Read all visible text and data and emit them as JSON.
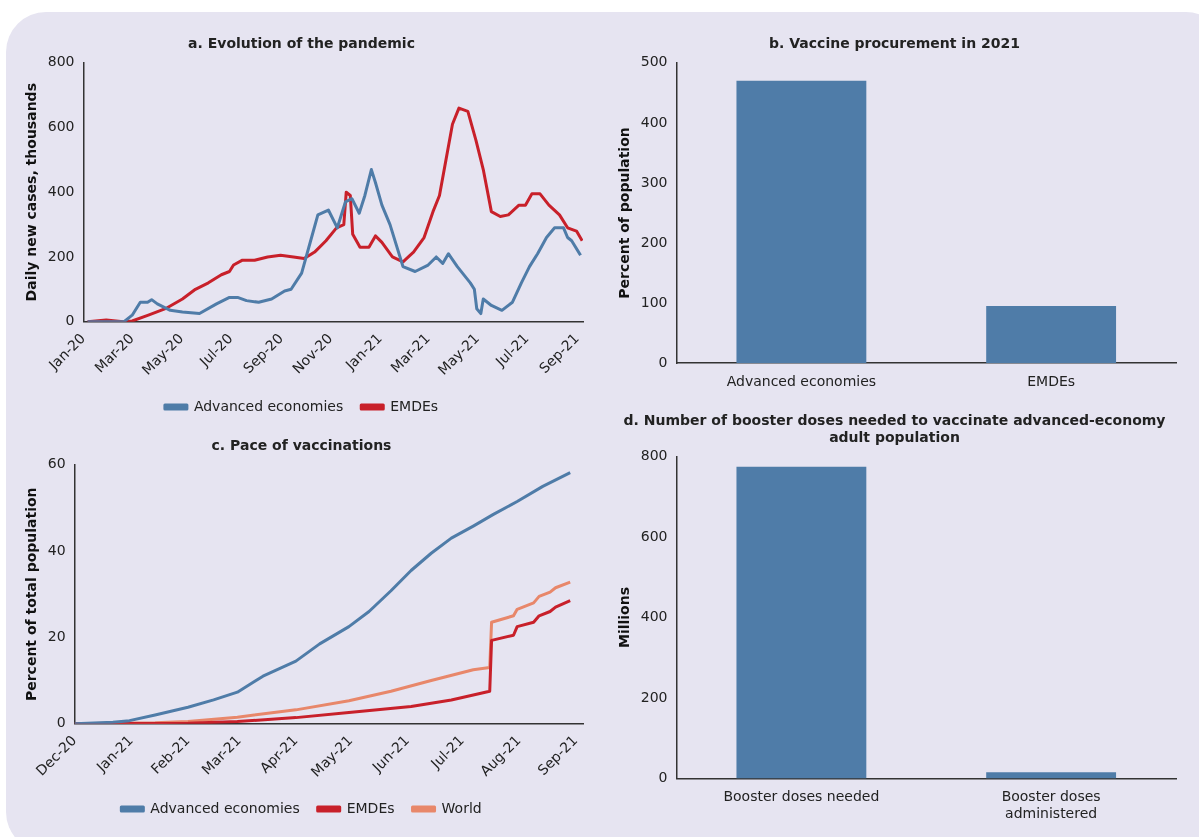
{
  "chart_data": [
    {
      "type": "line",
      "title": "a. Evolution of the pandemic",
      "ylabel": "Daily new cases, thousands",
      "legend": "bottom",
      "xlim": [
        "2020-01-01",
        "2021-09-08"
      ],
      "xticks": [
        {
          "value": "2020-01-01",
          "label": "Jan-20"
        },
        {
          "value": "2020-03-01",
          "label": "Mar-20"
        },
        {
          "value": "2020-05-01",
          "label": "May-20"
        },
        {
          "value": "2020-07-01",
          "label": "Jul-20"
        },
        {
          "value": "2020-09-01",
          "label": "Sep-20"
        },
        {
          "value": "2020-11-01",
          "label": "Nov-20"
        },
        {
          "value": "2021-01-01",
          "label": "Jan-21"
        },
        {
          "value": "2021-03-01",
          "label": "Mar-21"
        },
        {
          "value": "2021-05-01",
          "label": "May-21"
        },
        {
          "value": "2021-07-01",
          "label": "Jul-21"
        },
        {
          "value": "2021-09-01",
          "label": "Sep-21"
        }
      ],
      "ylim": [
        0,
        800
      ],
      "yticks": [
        0,
        200,
        400,
        600,
        800
      ],
      "series": [
        {
          "name": "Advanced economies",
          "color": "#4f7ca8",
          "x": [
            "2020-01-06",
            "2020-02-20",
            "2020-03-01",
            "2020-03-11",
            "2020-03-20",
            "2020-03-25",
            "2020-04-01",
            "2020-04-17",
            "2020-05-02",
            "2020-05-23",
            "2020-06-13",
            "2020-06-29",
            "2020-07-09",
            "2020-07-20",
            "2020-08-04",
            "2020-08-20",
            "2020-09-05",
            "2020-09-13",
            "2020-09-26",
            "2020-10-06",
            "2020-10-16",
            "2020-10-29",
            "2020-11-09",
            "2020-11-19",
            "2020-11-27",
            "2020-12-06",
            "2020-12-13",
            "2020-12-21",
            "2020-12-26",
            "2021-01-03",
            "2021-01-13",
            "2021-01-29",
            "2021-02-13",
            "2021-03-01",
            "2021-03-11",
            "2021-03-19",
            "2021-03-26",
            "2021-04-06",
            "2021-04-22",
            "2021-04-27",
            "2021-04-30",
            "2021-05-05",
            "2021-05-08",
            "2021-05-18",
            "2021-05-31",
            "2021-06-13",
            "2021-06-24",
            "2021-07-04",
            "2021-07-14",
            "2021-07-25",
            "2021-08-04",
            "2021-08-15",
            "2021-08-20",
            "2021-08-25",
            "2021-09-05"
          ],
          "values": [
            0,
            0,
            20,
            60,
            60,
            68,
            55,
            35,
            30,
            25,
            55,
            75,
            75,
            65,
            60,
            70,
            95,
            100,
            150,
            240,
            330,
            345,
            290,
            370,
            380,
            335,
            390,
            470,
            430,
            360,
            300,
            170,
            155,
            175,
            200,
            180,
            210,
            170,
            120,
            100,
            40,
            25,
            70,
            50,
            35,
            60,
            120,
            170,
            210,
            260,
            290,
            290,
            260,
            250,
            205
          ]
        },
        {
          "name": "EMDEs",
          "color": "#c8202a",
          "x": [
            "2020-01-06",
            "2020-01-29",
            "2020-02-19",
            "2020-03-01",
            "2020-03-21",
            "2020-04-11",
            "2020-05-02",
            "2020-05-18",
            "2020-06-03",
            "2020-06-19",
            "2020-06-29",
            "2020-07-04",
            "2020-07-15",
            "2020-07-30",
            "2020-08-15",
            "2020-08-31",
            "2020-09-16",
            "2020-09-29",
            "2020-10-12",
            "2020-10-26",
            "2020-11-08",
            "2020-11-17",
            "2020-11-20",
            "2020-11-25",
            "2020-11-28",
            "2020-12-07",
            "2020-12-18",
            "2020-12-26",
            "2021-01-03",
            "2021-01-16",
            "2021-01-29",
            "2021-02-11",
            "2021-02-24",
            "2021-03-07",
            "2021-03-15",
            "2021-03-23",
            "2021-03-31",
            "2021-04-08",
            "2021-04-19",
            "2021-04-29",
            "2021-05-08",
            "2021-05-18",
            "2021-05-29",
            "2021-06-08",
            "2021-06-21",
            "2021-06-29",
            "2021-07-07",
            "2021-07-17",
            "2021-07-28",
            "2021-08-10",
            "2021-08-20",
            "2021-08-31",
            "2021-09-07"
          ],
          "values": [
            0,
            5,
            0,
            2,
            20,
            40,
            70,
            100,
            120,
            145,
            155,
            175,
            190,
            190,
            200,
            205,
            200,
            195,
            215,
            250,
            290,
            300,
            400,
            390,
            270,
            230,
            230,
            265,
            245,
            200,
            185,
            215,
            260,
            340,
            390,
            500,
            610,
            660,
            650,
            560,
            470,
            340,
            325,
            330,
            360,
            360,
            395,
            395,
            360,
            330,
            290,
            280,
            250
          ]
        }
      ]
    },
    {
      "type": "bar",
      "title": "b. Vaccine procurement in 2021",
      "ylabel": "Percent of population",
      "categories": [
        "Advanced economies",
        "EMDEs"
      ],
      "values": [
        470,
        95
      ],
      "color": "#4f7ca8",
      "ylim": [
        0,
        500
      ],
      "yticks": [
        0,
        100,
        200,
        300,
        400,
        500
      ]
    },
    {
      "type": "line",
      "title": "c. Pace of vaccinations",
      "ylabel": "Percent of total population",
      "legend": "bottom",
      "xlim": [
        "2020-12-01",
        "2021-09-05"
      ],
      "xticks": [
        {
          "value": "2020-12-01",
          "label": "Dec-20"
        },
        {
          "value": "2021-01-01",
          "label": "Jan-21"
        },
        {
          "value": "2021-02-01",
          "label": "Feb-21"
        },
        {
          "value": "2021-03-01",
          "label": "Mar-21"
        },
        {
          "value": "2021-04-01",
          "label": "Apr-21"
        },
        {
          "value": "2021-05-01",
          "label": "May-21"
        },
        {
          "value": "2021-06-01",
          "label": "Jun-21"
        },
        {
          "value": "2021-07-01",
          "label": "Jul-21"
        },
        {
          "value": "2021-08-01",
          "label": "Aug-21"
        },
        {
          "value": "2021-09-01",
          "label": "Sep-21"
        }
      ],
      "ylim": [
        0,
        60
      ],
      "yticks": [
        0,
        20,
        40,
        60
      ],
      "series": [
        {
          "name": "Advanced economies",
          "color": "#4f7ca8",
          "x": [
            "2020-12-01",
            "2020-12-22",
            "2020-12-31",
            "2021-01-14",
            "2021-02-01",
            "2021-02-15",
            "2021-02-28",
            "2021-03-14",
            "2021-04-01",
            "2021-04-14",
            "2021-04-30",
            "2021-05-11",
            "2021-05-23",
            "2021-06-03",
            "2021-06-14",
            "2021-06-25",
            "2021-07-07",
            "2021-07-18",
            "2021-07-31",
            "2021-08-14",
            "2021-08-29"
          ],
          "values": [
            0,
            0.3,
            0.7,
            2,
            3.8,
            5.5,
            7.3,
            11,
            14.5,
            18.5,
            22.5,
            26,
            30.8,
            35.5,
            39.5,
            43,
            45.8,
            48.5,
            51.5,
            55,
            58.2
          ]
        },
        {
          "name": "EMDEs",
          "color": "#c8202a",
          "x": [
            "2020-12-01",
            "2021-02-01",
            "2021-02-28",
            "2021-04-01",
            "2021-04-30",
            "2021-06-03",
            "2021-06-25",
            "2021-07-16",
            "2021-07-17",
            "2021-07-29",
            "2021-07-31",
            "2021-08-09",
            "2021-08-12",
            "2021-08-18",
            "2021-08-21",
            "2021-08-29"
          ],
          "values": [
            0,
            0.1,
            0.5,
            1.4,
            2.6,
            4,
            5.5,
            7.5,
            19.3,
            20.5,
            22.5,
            23.5,
            25,
            26,
            27,
            28.5
          ]
        },
        {
          "name": "World",
          "color": "#e8876a",
          "x": [
            "2020-12-01",
            "2021-01-14",
            "2021-02-01",
            "2021-02-28",
            "2021-04-01",
            "2021-04-30",
            "2021-05-23",
            "2021-06-14",
            "2021-07-07",
            "2021-07-16",
            "2021-07-17",
            "2021-07-29",
            "2021-07-31",
            "2021-08-09",
            "2021-08-12",
            "2021-08-18",
            "2021-08-21",
            "2021-08-29"
          ],
          "values": [
            0,
            0.2,
            0.5,
            1.5,
            3.2,
            5.3,
            7.5,
            10,
            12.5,
            13,
            23.5,
            25,
            26.5,
            28,
            29.5,
            30.5,
            31.5,
            32.8
          ]
        }
      ]
    },
    {
      "type": "bar",
      "title": "d. Number of booster doses needed to vaccinate advanced-economy adult population",
      "ylabel": "Millions",
      "categories": [
        "Booster doses needed",
        "Booster doses administered"
      ],
      "values": [
        775,
        15
      ],
      "color": "#4f7ca8",
      "ylim": [
        0,
        800
      ],
      "yticks": [
        0,
        200,
        400,
        600,
        800
      ]
    }
  ]
}
